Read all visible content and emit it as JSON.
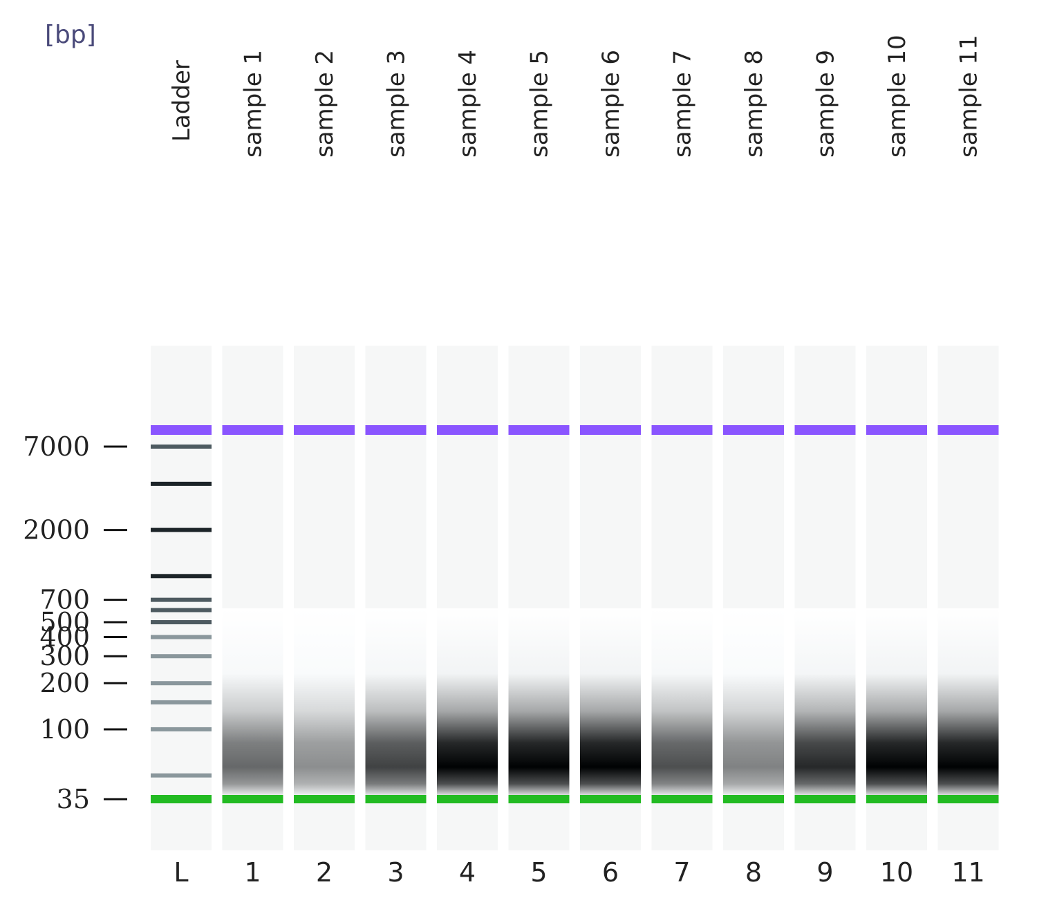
{
  "unit_label": "[bp]",
  "size_markers": [
    {
      "label": "7000",
      "value": 7000
    },
    {
      "label": "2000",
      "value": 2000
    },
    {
      "label": "700",
      "value": 700
    },
    {
      "label": "500",
      "value": 500
    },
    {
      "label": "400",
      "value": 400
    },
    {
      "label": "300",
      "value": 300
    },
    {
      "label": "200",
      "value": 200
    },
    {
      "label": "100",
      "value": 100
    },
    {
      "label": "35",
      "value": 35
    }
  ],
  "ladder_bands_bp": [
    7000,
    4000,
    2000,
    1000,
    700,
    600,
    500,
    400,
    300,
    200,
    150,
    100,
    50
  ],
  "upper_marker_color": "#8a55ff",
  "lower_marker_color": "#22bb22",
  "lanes": [
    {
      "name": "Ladder",
      "number": "L",
      "type": "ladder"
    },
    {
      "name": "sample 1",
      "number": "1",
      "smear_intensity": 0.6
    },
    {
      "name": "sample 2",
      "number": "2",
      "smear_intensity": 0.45
    },
    {
      "name": "sample 3",
      "number": "3",
      "smear_intensity": 0.75
    },
    {
      "name": "sample 4",
      "number": "4",
      "smear_intensity": 1.0
    },
    {
      "name": "sample 5",
      "number": "5",
      "smear_intensity": 1.0
    },
    {
      "name": "sample 6",
      "number": "6",
      "smear_intensity": 1.0
    },
    {
      "name": "sample 7",
      "number": "7",
      "smear_intensity": 0.7
    },
    {
      "name": "sample 8",
      "number": "8",
      "smear_intensity": 0.5
    },
    {
      "name": "sample 9",
      "number": "9",
      "smear_intensity": 0.85
    },
    {
      "name": "sample 10",
      "number": "10",
      "smear_intensity": 1.0
    },
    {
      "name": "sample 11",
      "number": "11",
      "smear_intensity": 1.0
    }
  ]
}
